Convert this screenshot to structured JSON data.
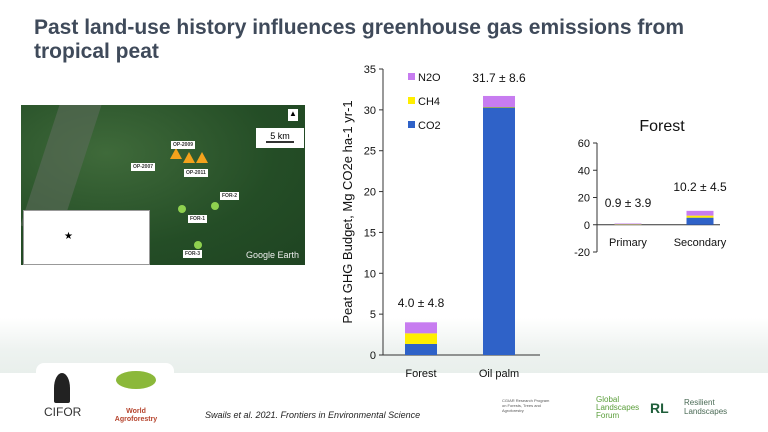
{
  "title": "Past land-use history influences greenhouse gas emissions from tropical peat",
  "map": {
    "scale_label": "5 km",
    "north_label": "N",
    "site_labels": [
      "OP-2007",
      "OP-2009",
      "OP-2011",
      "FOR-1",
      "FOR-2",
      "FOR-3"
    ],
    "attribution": "Google Earth"
  },
  "colors": {
    "CO2": "#2f62c8",
    "CH4": "#ffee00",
    "N2O": "#c77cf0",
    "title": "#3f4a5a"
  },
  "chart_data": [
    {
      "type": "bar",
      "stacked": true,
      "categories": [
        "Forest",
        "Oil palm"
      ],
      "series": [
        {
          "name": "CO2",
          "values": [
            1.35,
            30.3
          ]
        },
        {
          "name": "CH4",
          "values": [
            1.3,
            0.05
          ]
        },
        {
          "name": "N2O",
          "values": [
            1.35,
            1.35
          ]
        }
      ],
      "data_labels": [
        "4.0 ± 4.8",
        "31.7 ± 8.6"
      ],
      "ylabel": "Peat GHG Budget, Mg CO2e ha-1 yr-1",
      "ylim": [
        0,
        35
      ],
      "yticks": [
        0,
        5,
        10,
        15,
        20,
        25,
        30,
        35
      ],
      "legend": {
        "placement": "top-left",
        "order": [
          "N2O",
          "CH4",
          "CO2"
        ]
      },
      "grid": false
    },
    {
      "type": "bar",
      "stacked": true,
      "title": "Forest",
      "categories": [
        "Primary",
        "Secondary"
      ],
      "series": [
        {
          "name": "CO2",
          "values": [
            0.3,
            5.2
          ]
        },
        {
          "name": "CH4",
          "values": [
            0.1,
            1.5
          ]
        },
        {
          "name": "N2O",
          "values": [
            0.5,
            3.5
          ]
        }
      ],
      "data_labels": [
        "0.9 ± 3.9",
        "10.2 ± 4.5"
      ],
      "ylim": [
        -20,
        60
      ],
      "yticks": [
        -20,
        0,
        20,
        40,
        60
      ],
      "grid": false
    }
  ],
  "footer": {
    "citation": "Swails et al. 2021. Frontiers in Environmental Science",
    "logos": [
      "CIFOR",
      "World Agroforestry",
      "CGIAR Research Program on Forests, Trees and Agroforestry",
      "Global Landscapes Forum",
      "Resilient Landscapes"
    ]
  }
}
